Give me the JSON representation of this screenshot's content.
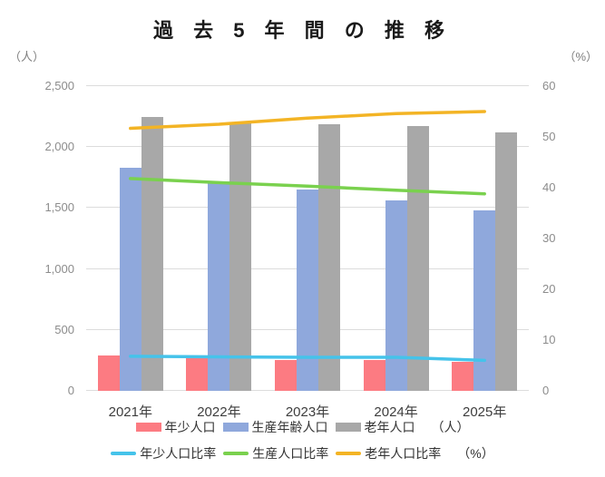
{
  "title": "過 去 5 年 間 の 推 移",
  "left_axis_unit": "（人）",
  "right_axis_unit": "（%）",
  "legend": {
    "bars": [
      {
        "label": "年少人口",
        "color": "#FC7B82"
      },
      {
        "label": "生産年齢人口",
        "color": "#8FA8DC"
      },
      {
        "label": "老年人口",
        "color": "#A8A8A8"
      }
    ],
    "bars_unit": "（人）",
    "lines": [
      {
        "label": "年少人口比率",
        "color": "#45C3EA"
      },
      {
        "label": "生産人口比率",
        "color": "#7AD14E"
      },
      {
        "label": "老年人口比率",
        "color": "#F3B425"
      }
    ],
    "lines_unit": "（%）"
  },
  "chart_data": {
    "type": "bar",
    "subtype": "grouped-bar-with-lines-combo",
    "title": "過去5年間の推移",
    "categories": [
      "2021年",
      "2022年",
      "2023年",
      "2024年",
      "2025年"
    ],
    "bar_series": [
      {
        "name": "年少人口",
        "axis": "left",
        "color": "#FC7B82",
        "values": [
          290,
          265,
          250,
          255,
          240
        ]
      },
      {
        "name": "生産年齢人口",
        "axis": "left",
        "color": "#8FA8DC",
        "values": [
          1830,
          1720,
          1650,
          1560,
          1480
        ]
      },
      {
        "name": "老年人口",
        "axis": "left",
        "color": "#A8A8A8",
        "values": [
          2250,
          2200,
          2190,
          2170,
          2120
        ]
      }
    ],
    "line_series": [
      {
        "name": "年少人口比率",
        "axis": "right",
        "color": "#45C3EA",
        "values": [
          6.8,
          6.7,
          6.6,
          6.6,
          6.0
        ]
      },
      {
        "name": "生産人口比率",
        "axis": "right",
        "color": "#7AD14E",
        "values": [
          41.8,
          41.0,
          40.3,
          39.5,
          38.8
        ]
      },
      {
        "name": "老年人口比率",
        "axis": "right",
        "color": "#F3B425",
        "values": [
          51.7,
          52.5,
          53.7,
          54.6,
          55.0
        ]
      }
    ],
    "left_axis": {
      "unit": "（人）",
      "min": 0,
      "max": 2500,
      "step": 500,
      "ticks": [
        "0",
        "500",
        "1,000",
        "1,500",
        "2,000",
        "2,500"
      ]
    },
    "right_axis": {
      "unit": "（%）",
      "min": 0,
      "max": 60,
      "step": 10,
      "ticks": [
        "0",
        "10",
        "20",
        "30",
        "40",
        "50",
        "60"
      ]
    },
    "grid": "horizontal",
    "legend_position": "bottom"
  }
}
